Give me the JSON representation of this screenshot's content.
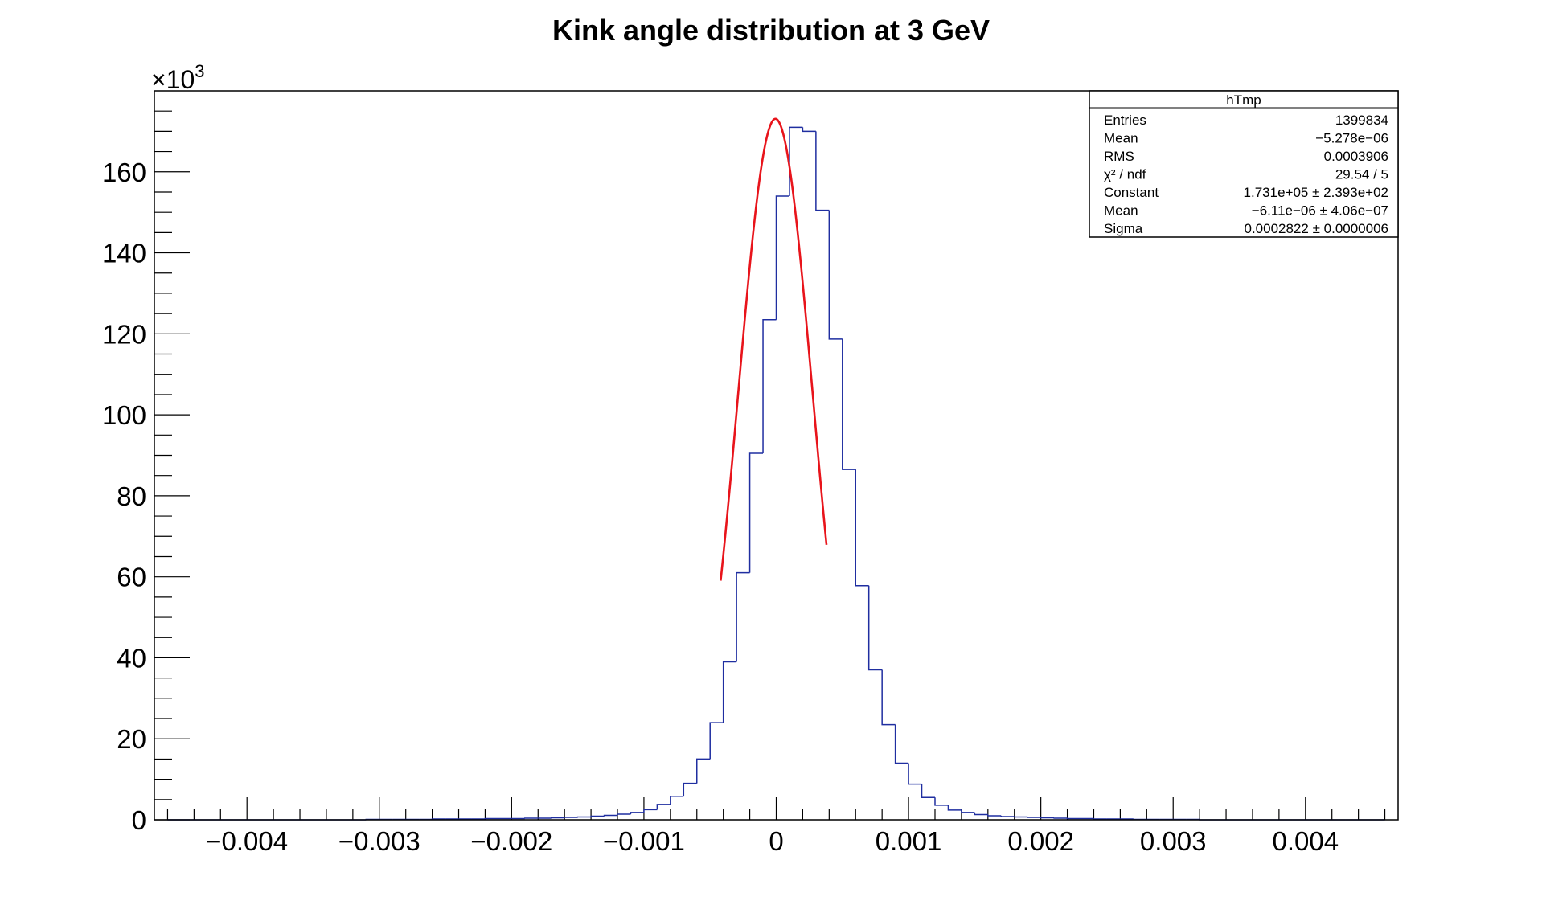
{
  "chart_data": {
    "type": "histogram",
    "title": "Kink angle distribution at 3 GeV",
    "xlabel": "",
    "ylabel": "",
    "y_scale_label": "×10",
    "y_scale_exponent": "3",
    "xlim": [
      -0.0047,
      0.0047
    ],
    "ylim": [
      0,
      180
    ],
    "x_ticks": [
      {
        "value": -0.004,
        "label": "−0.004"
      },
      {
        "value": -0.003,
        "label": "−0.003"
      },
      {
        "value": -0.002,
        "label": "−0.002"
      },
      {
        "value": -0.001,
        "label": "−0.001"
      },
      {
        "value": 0,
        "label": "0"
      },
      {
        "value": 0.001,
        "label": "0.001"
      },
      {
        "value": 0.002,
        "label": "0.002"
      },
      {
        "value": 0.003,
        "label": "0.003"
      },
      {
        "value": 0.004,
        "label": "0.004"
      }
    ],
    "y_ticks": [
      {
        "value": 0,
        "label": "0"
      },
      {
        "value": 20,
        "label": "20"
      },
      {
        "value": 40,
        "label": "40"
      },
      {
        "value": 60,
        "label": "60"
      },
      {
        "value": 80,
        "label": "80"
      },
      {
        "value": 100,
        "label": "100"
      },
      {
        "value": 120,
        "label": "120"
      },
      {
        "value": 140,
        "label": "140"
      },
      {
        "value": 160,
        "label": "160"
      }
    ],
    "histogram": {
      "color": "#1f2ea0",
      "bin_edges": [
        -0.0046,
        -0.0045,
        -0.0044,
        -0.0043,
        -0.0042,
        -0.0041,
        -0.004,
        -0.0039,
        -0.0038,
        -0.0037,
        -0.0036,
        -0.0035,
        -0.0034,
        -0.0033,
        -0.0032,
        -0.0031,
        -0.003,
        -0.0029,
        -0.0028,
        -0.0027,
        -0.0026,
        -0.0025,
        -0.0024,
        -0.0023,
        -0.0022,
        -0.0021,
        -0.002,
        -0.0019,
        -0.0018,
        -0.0017,
        -0.0016,
        -0.0015,
        -0.0014,
        -0.0013,
        -0.0012,
        -0.0011,
        -0.001,
        -0.0009,
        -0.0008,
        -0.0007,
        -0.0006,
        -0.0005,
        -0.0004,
        -0.0003,
        -0.0002,
        -0.0001,
        0,
        0.0001,
        0.0002,
        0.0003,
        0.0004,
        0.0005,
        0.0006,
        0.0007,
        0.0008,
        0.0009,
        0.001,
        0.0011,
        0.0012,
        0.0013,
        0.0014,
        0.0015,
        0.0016,
        0.0017,
        0.0018,
        0.0019,
        0.002,
        0.0021,
        0.0022,
        0.0023,
        0.0024,
        0.0025,
        0.0026,
        0.0027,
        0.0028,
        0.0029,
        0.003,
        0.0031,
        0.0032,
        0.0033,
        0.0034,
        0.0035,
        0.0036,
        0.0037,
        0.0038,
        0.0039,
        0.004,
        0.0041,
        0.0042,
        0.0043,
        0.0044,
        0.0045,
        0.0046
      ],
      "counts": [
        0,
        0,
        0,
        0,
        0,
        0,
        0,
        0,
        0,
        0,
        0,
        0,
        0,
        0,
        0,
        0.1,
        0.1,
        0.1,
        0.1,
        0.1,
        0.2,
        0.2,
        0.2,
        0.2,
        0.3,
        0.3,
        0.3,
        0.4,
        0.4,
        0.5,
        0.6,
        0.7,
        0.9,
        1.1,
        1.4,
        1.8,
        2.5,
        3.8,
        5.8,
        9.0,
        15.0,
        24.0,
        39.0,
        61.0,
        90.5,
        123.5,
        154.0,
        171.0,
        170.0,
        150.5,
        118.7,
        86.5,
        57.8,
        37.0,
        23.5,
        14.0,
        8.8,
        5.5,
        3.6,
        2.4,
        1.8,
        1.3,
        1.0,
        0.8,
        0.7,
        0.6,
        0.5,
        0.4,
        0.3,
        0.3,
        0.2,
        0.2,
        0.2,
        0.1,
        0.1,
        0.1,
        0.1,
        0.1,
        0,
        0,
        0,
        0,
        0,
        0,
        0,
        0,
        0,
        0,
        0,
        0,
        0,
        0
      ]
    },
    "fit": {
      "type": "gaussian",
      "color": "#e8141b",
      "constant": 173.1,
      "mean": -6.11e-06,
      "sigma": 0.0002822,
      "range": [
        -0.00042,
        0.00038
      ]
    },
    "stats_box": {
      "title": "hTmp",
      "rows": [
        {
          "label": "Entries",
          "value": "1399834"
        },
        {
          "label": "Mean",
          "value": "−5.278e−06"
        },
        {
          "label": "RMS",
          "value": "0.0003906"
        },
        {
          "label": "χ² / ndf",
          "value": "29.54 / 5"
        },
        {
          "label": "Constant",
          "value": "1.731e+05 ± 2.393e+02"
        },
        {
          "label": "Mean",
          "value": "−6.11e−06 ± 4.06e−07"
        },
        {
          "label": "Sigma",
          "value": "0.0002822 ± 0.0000006"
        }
      ]
    }
  }
}
